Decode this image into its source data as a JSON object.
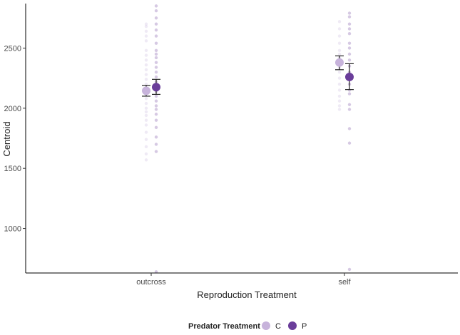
{
  "chart_data": {
    "type": "scatter",
    "title": "",
    "xlabel": "Reproduction Treatment",
    "ylabel": "Centroid",
    "categories": [
      "outcross",
      "self"
    ],
    "ylim": [
      630,
      2870
    ],
    "yticks": [
      1000,
      1500,
      2000,
      2500
    ],
    "grid": false,
    "legend": {
      "title": "Predator Treatment",
      "position": "bottom"
    },
    "series": [
      {
        "name": "C",
        "color": "#c7b3db",
        "means": [
          2145,
          2380
        ],
        "errors": [
          [
            2100,
            2190
          ],
          [
            2320,
            2435
          ]
        ],
        "points": [
          [
            2700,
            2680,
            2640,
            2600,
            2560,
            2480,
            2440,
            2400,
            2360,
            2320,
            2280,
            2240,
            2200,
            2160,
            2120,
            2080,
            2040,
            2000,
            1970,
            1940,
            1900,
            1860,
            1800,
            1740,
            1680,
            1620,
            1570
          ],
          [
            2720,
            2660,
            2600,
            2540,
            2480,
            2450,
            2420,
            2400,
            2370,
            2340,
            2300,
            2250,
            2200,
            2150,
            2100,
            2060,
            2020,
            1990
          ]
        ]
      },
      {
        "name": "P",
        "color": "#6a3d9a",
        "means": [
          2175,
          2260
        ],
        "errors": [
          [
            2115,
            2240
          ],
          [
            2155,
            2370
          ]
        ],
        "points": [
          [
            2850,
            2810,
            2750,
            2700,
            2650,
            2600,
            2540,
            2480,
            2450,
            2420,
            2380,
            2340,
            2300,
            2260,
            2220,
            2180,
            2140,
            2100,
            2060,
            2020,
            1990,
            1950,
            1900,
            1840,
            1760,
            1700,
            1640,
            640
          ],
          [
            2790,
            2760,
            2700,
            2660,
            2620,
            2540,
            2500,
            2450,
            2400,
            2350,
            2300,
            2250,
            2200,
            2150,
            2120,
            2030,
            1990,
            1830,
            1710,
            660
          ]
        ]
      }
    ]
  }
}
